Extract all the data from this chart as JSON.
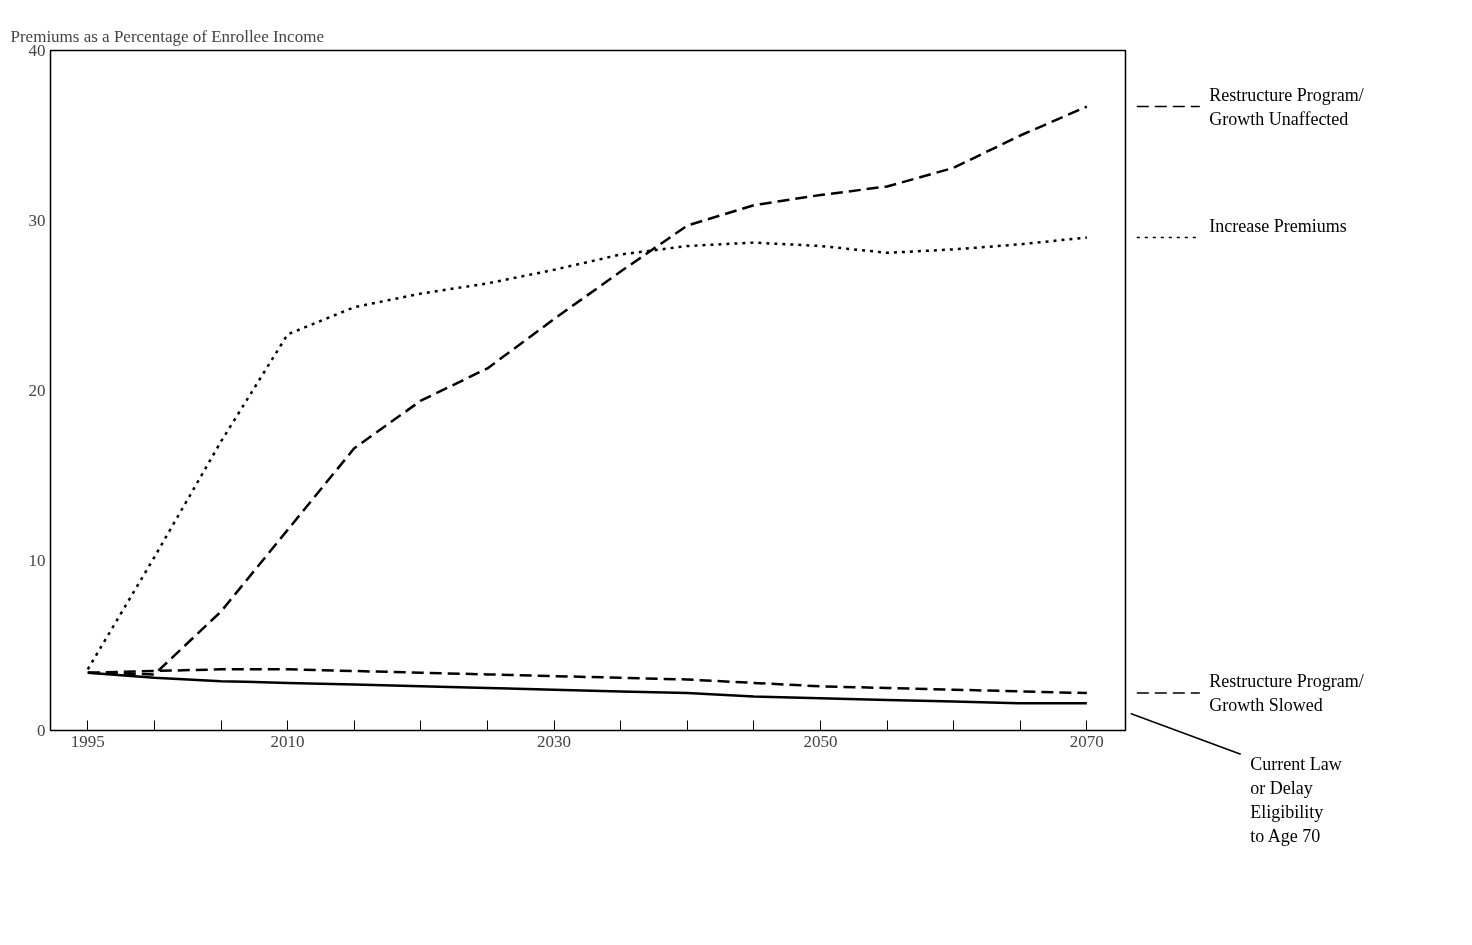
{
  "chart_data": {
    "type": "line",
    "ylabel": "Premiums as a Percentage of Enrollee Income",
    "x": [
      1995,
      2000,
      2005,
      2010,
      2015,
      2020,
      2025,
      2030,
      2035,
      2040,
      2045,
      2050,
      2055,
      2060,
      2065,
      2070
    ],
    "xlim": [
      1992.2,
      2072.9
    ],
    "xticks": [
      1995,
      {
        "value": 2000,
        "label": null
      },
      {
        "value": 2005,
        "label": null
      },
      2010,
      {
        "value": 2015,
        "label": null
      },
      {
        "value": 2020,
        "label": null
      },
      {
        "value": 2025,
        "label": null
      },
      2030,
      {
        "value": 2035,
        "label": null
      },
      {
        "value": 2040,
        "label": null
      },
      {
        "value": 2045,
        "label": null
      },
      2050,
      {
        "value": 2055,
        "label": null
      },
      {
        "value": 2060,
        "label": null
      },
      {
        "value": 2065,
        "label": null
      },
      2070
    ],
    "ylim": [
      0,
      40
    ],
    "yticks": [
      0,
      10,
      20,
      30,
      40
    ],
    "grid": false,
    "legend": "right",
    "series": [
      {
        "name": "Restructure Program/ Growth Unaffected",
        "color": "#000000",
        "line_style": "dashed",
        "values": [
          3.4,
          3.3,
          7,
          11.8,
          16.6,
          19.4,
          21.3,
          24.2,
          27,
          29.7,
          30.9,
          31.5,
          32,
          33.1,
          35,
          36.7
        ]
      },
      {
        "name": "Increase Premiums",
        "color": "#000000",
        "line_style": "dotted",
        "values": [
          3.6,
          10.2,
          17,
          23.3,
          24.9,
          25.7,
          26.3,
          27.1,
          28,
          28.5,
          28.7,
          28.5,
          28.1,
          28.3,
          28.6,
          29
        ]
      },
      {
        "name": "Restructure Program/ Growth Slowed",
        "color": "#000000",
        "line_style": "dashed",
        "values": [
          3.4,
          3.5,
          3.6,
          3.6,
          3.5,
          3.4,
          3.3,
          3.2,
          3.1,
          3.0,
          2.8,
          2.6,
          2.5,
          2.4,
          2.3,
          2.2
        ]
      },
      {
        "name": "Current Law or Delay Eligibility to Age 70",
        "color": "#000000",
        "line_style": "solid",
        "values": [
          3.4,
          3.1,
          2.9,
          2.8,
          2.7,
          2.6,
          2.5,
          2.4,
          2.3,
          2.2,
          2.0,
          1.9,
          1.8,
          1.7,
          1.6,
          1.6
        ]
      }
    ]
  }
}
